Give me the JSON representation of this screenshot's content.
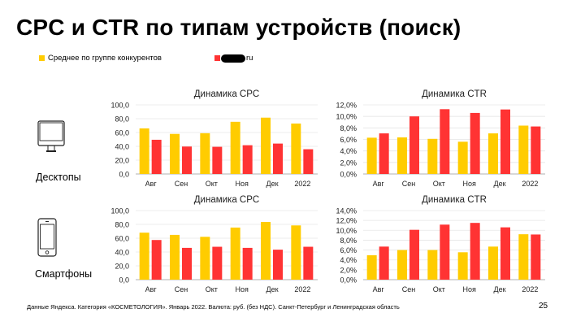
{
  "title": "CPC и CTR по типам устройств (поиск)",
  "legend": {
    "competitors": {
      "label": "Среднее по группе конкурентов",
      "color": "#FFCC00"
    },
    "own": {
      "label": "ru",
      "color": "#FF3333"
    }
  },
  "devices": {
    "desktop": "Десктопы",
    "mobile": "Смартфоны"
  },
  "footer": "Данные Яндекса. Категория «КОСМЕТОЛОГИЯ». Январь 2022. Валюта: руб. (без НДС). Санкт-Петербург и Ленинградская область",
  "page_number": "25",
  "chart_data": [
    {
      "type": "bar",
      "title": "Динамика CPC",
      "device": "Десктопы",
      "categories": [
        "Авг",
        "Сен",
        "Окт",
        "Ноя",
        "Дек",
        "2022"
      ],
      "ylim": [
        0,
        100
      ],
      "yticks": [
        "0,0",
        "20,0",
        "40,0",
        "60,0",
        "80,0",
        "100,0"
      ],
      "grid": true,
      "series": [
        {
          "name": "Среднее по группе конкурентов",
          "color": "#FFCC00",
          "values": [
            66,
            58,
            59,
            75.5,
            81.5,
            73
          ]
        },
        {
          "name": "ru",
          "color": "#FF3333",
          "values": [
            49.5,
            39.7,
            39.3,
            41.6,
            44,
            35.8
          ]
        }
      ]
    },
    {
      "type": "bar",
      "title": "Динамика CTR",
      "device": "Десктопы",
      "categories": [
        "Авг",
        "Сен",
        "Окт",
        "Ноя",
        "Дек",
        "2022"
      ],
      "ylim": [
        0,
        12
      ],
      "yticks": [
        "0,0%",
        "2,0%",
        "4,0%",
        "6,0%",
        "8,0%",
        "10,0%",
        "12,0%"
      ],
      "grid": true,
      "series": [
        {
          "name": "Среднее по группе конкурентов",
          "color": "#FFCC00",
          "values": [
            6.3,
            6.35,
            6.1,
            5.6,
            7.05,
            8.4
          ]
        },
        {
          "name": "ru",
          "color": "#FF3333",
          "values": [
            7.05,
            10.0,
            11.25,
            10.6,
            11.2,
            8.25
          ]
        }
      ]
    },
    {
      "type": "bar",
      "title": "Динамика CPC",
      "device": "Смартфоны",
      "categories": [
        "Авг",
        "Сен",
        "Окт",
        "Ноя",
        "Дек",
        "2022"
      ],
      "ylim": [
        0,
        100
      ],
      "yticks": [
        "0,0",
        "20,0",
        "40,0",
        "60,0",
        "80,0",
        "100,0"
      ],
      "grid": true,
      "series": [
        {
          "name": "Среднее по группе конкурентов",
          "color": "#FFCC00",
          "values": [
            68,
            64.8,
            62,
            75.4,
            83.5,
            78.5
          ]
        },
        {
          "name": "ru",
          "color": "#FF3333",
          "values": [
            57.4,
            46,
            47.6,
            46,
            43.4,
            47.6
          ]
        }
      ]
    },
    {
      "type": "bar",
      "title": "Динамика CTR",
      "device": "Смартфоны",
      "categories": [
        "Авг",
        "Сен",
        "Окт",
        "Ноя",
        "Дек",
        "2022"
      ],
      "ylim": [
        0,
        14
      ],
      "yticks": [
        "0,0%",
        "2,0%",
        "4,0%",
        "6,0%",
        "8,0%",
        "10,0%",
        "12,0%",
        "14,0%"
      ],
      "grid": true,
      "series": [
        {
          "name": "Среднее по группе конкурентов",
          "color": "#FFCC00",
          "values": [
            4.95,
            6.0,
            6.0,
            5.55,
            6.7,
            9.2
          ]
        },
        {
          "name": "ru",
          "color": "#FF3333",
          "values": [
            6.7,
            10.1,
            11.15,
            11.5,
            10.6,
            9.15
          ]
        }
      ]
    }
  ]
}
